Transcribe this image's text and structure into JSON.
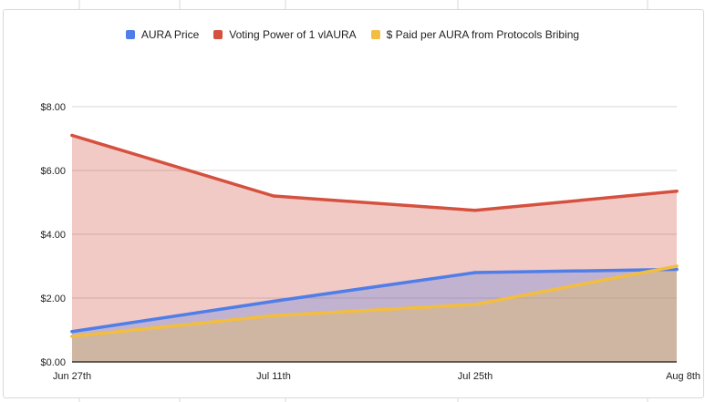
{
  "chart_data": {
    "type": "area",
    "title": "",
    "xlabel": "",
    "ylabel": "",
    "categories": [
      "Jun 27th",
      "Jul 11th",
      "Jul 25th",
      "Aug 8th"
    ],
    "ylim": [
      0,
      8
    ],
    "yticks": [
      0,
      2,
      4,
      6,
      8
    ],
    "ytick_labels": [
      "$0.00",
      "$2.00",
      "$4.00",
      "$6.00",
      "$8.00"
    ],
    "grid": true,
    "legend_position": "top",
    "series": [
      {
        "name": "AURA Price",
        "color": "#4f7ee9",
        "fill": "#c9c3e2",
        "values": [
          0.95,
          1.9,
          2.8,
          2.9
        ]
      },
      {
        "name": "Voting Power of 1 vlAURA",
        "color": "#d5513f",
        "fill": "#f1c6c3",
        "values": [
          7.1,
          5.2,
          4.75,
          5.35
        ]
      },
      {
        "name": "$ Paid per AURA from Protocols Bribing",
        "color": "#f3bd40",
        "fill": "#d3b08a",
        "values": [
          0.8,
          1.45,
          1.8,
          3.0
        ]
      }
    ]
  }
}
